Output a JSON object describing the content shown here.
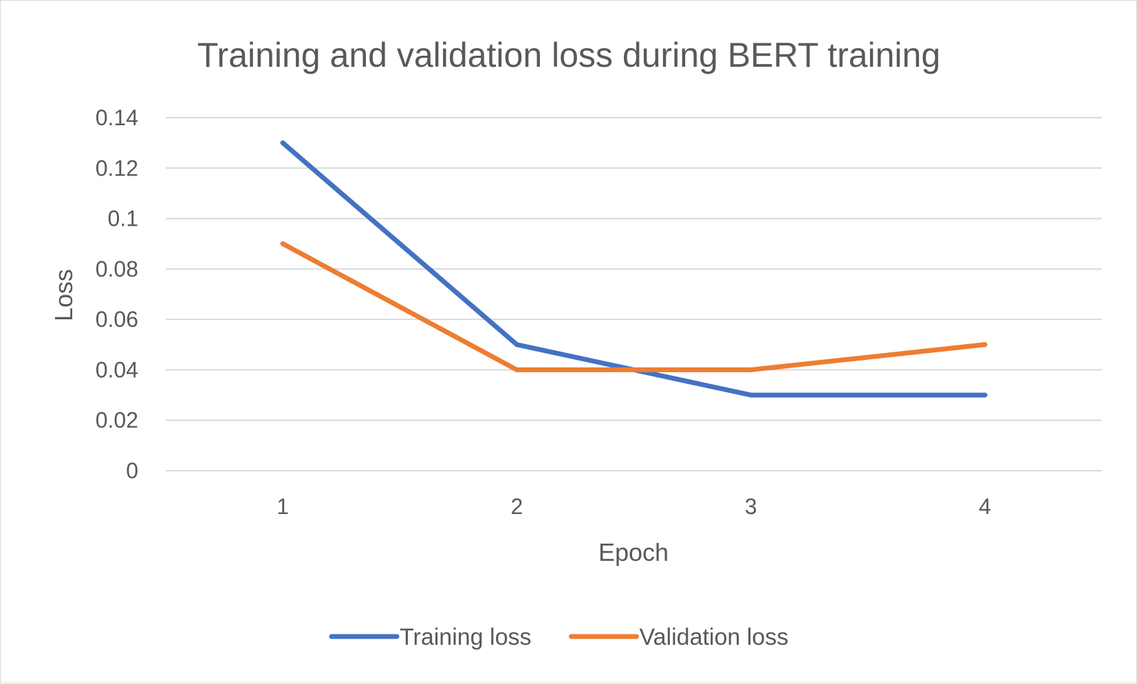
{
  "chart_data": {
    "type": "line",
    "title": "Training and validation loss during BERT training",
    "xlabel": "Epoch",
    "ylabel": "Loss",
    "categories": [
      "1",
      "2",
      "3",
      "4"
    ],
    "y_ticks": [
      "0",
      "0.02",
      "0.04",
      "0.06",
      "0.08",
      "0.1",
      "0.12",
      "0.14"
    ],
    "ylim": [
      0,
      0.14
    ],
    "grid": true,
    "legend_position": "bottom",
    "series": [
      {
        "name": "Training loss",
        "color": "#4472c4",
        "values": [
          0.13,
          0.05,
          0.03,
          0.03
        ]
      },
      {
        "name": "Validation loss",
        "color": "#ed7d31",
        "values": [
          0.09,
          0.04,
          0.04,
          0.05
        ]
      }
    ]
  }
}
